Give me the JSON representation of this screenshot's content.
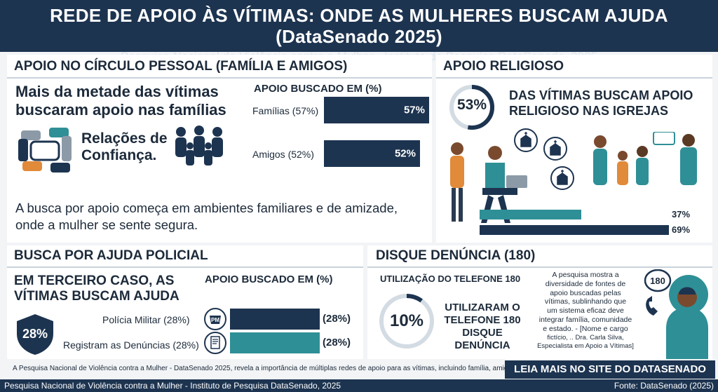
{
  "header": {
    "title": "REDE DE APOIO ÀS VÍTIMAS: ONDE AS MULHERES BUSCAM AJUDA (DataSenado 2025)",
    "subtitle": "Pesquisa Nacional de Violência contra a Mulher - Instituto de Pesquisa DataSenado, 2025"
  },
  "personal": {
    "title": "APOIO NO CÍRCULO PESSOAL (FAMÍLIA E AMIGOS)",
    "headline_1": "Mais da metade  das vítimas",
    "headline_2": "buscaram apoio nas famílias",
    "trust_1": "Relações de",
    "trust_2": "Confiança.",
    "chart_title": "APOIO BUSCADO EM (%)",
    "body_1": "A busca por apoio começa em ambientes familiares e de amizade,",
    "body_2": "onde a mulher se sente segura."
  },
  "religious": {
    "title": "APOIO RELIGIOSO",
    "ring_value": "53%",
    "headline_1": "DAS VÍTIMAS BUSCAM APOIO",
    "headline_2": "RELIGIOSO NAS IGREJAS",
    "bar_1_label": "37%",
    "bar_2_label": "69%"
  },
  "police": {
    "title": "BUSCA POR AJUDA POLICIAL",
    "headline_1": "EM TERCEIRO CASO, AS",
    "headline_2": "VÍTIMAS BUSCAM AJUDA",
    "badge_value": "28%",
    "chart_title": "APOIO BUSCADO EM (%)",
    "pm_icon_text": "PM"
  },
  "hotline": {
    "title": "DISQUE DENÚNCIA (180)",
    "usage_title": "UTILIZAÇÃO DO TELEFONE 180",
    "ring_value": "10%",
    "headline_1": "UTILIZARAM O",
    "headline_2": "TELEFONE 180",
    "headline_3": "DISQUE",
    "headline_4": "DENÚNCIA",
    "body_1": "A pesquisa mostra a",
    "body_2": "diversidade de fontes de",
    "body_3": "apoio buscadas pelas",
    "body_4": "vítimas, sublinhando que",
    "body_5": "um sistema eficaz deve",
    "body_6": "integrar família, comunidade",
    "body_7": "e estado.   - [Nome e cargo",
    "body_8": "fictício, .. Dra. Carla Silva,",
    "body_9": "Especialista em Apoio a Vítimas]",
    "phone_number": "180"
  },
  "footer": {
    "note": "A Pesquisa Nacional de Violência contra a Mulher - DataSenado 2025, revela a importância de múltiplas redes de apoio para as vítimas, incluindo família, amigos, igrejas e a polícia.",
    "read_more": "LEIA MAIS NO SITE DO DATASENADO",
    "bottom_left": "Pesquisa Nacional de Violência contra a Mulher - Instituto de Pesquisa DataSenado, 2025",
    "bottom_right": "Fonte: DataSenado (2025)"
  },
  "colors": {
    "navy": "#1d3450",
    "teal": "#2f8f96",
    "orange": "#e08a3a"
  },
  "chart_data": [
    {
      "type": "bar",
      "title": "APOIO BUSCADO EM (%)",
      "categories": [
        "Famílias (57%)",
        "Amigos (52%)"
      ],
      "values": [
        57,
        52
      ],
      "value_labels": [
        "57%",
        "52%"
      ],
      "ylim": [
        0,
        100
      ]
    },
    {
      "type": "bar",
      "title": "APOIO BUSCADO EM (%)",
      "categories": [
        "Polícia Militar (28%)",
        "Registram as Denúncias (28%)"
      ],
      "values": [
        28,
        28
      ],
      "value_labels": [
        "(28%)",
        "(28%)"
      ],
      "ylim": [
        0,
        100
      ]
    },
    {
      "type": "bar",
      "values": [
        37,
        69
      ],
      "value_labels": [
        "37%",
        "69%"
      ],
      "ylim": [
        0,
        100
      ]
    }
  ]
}
